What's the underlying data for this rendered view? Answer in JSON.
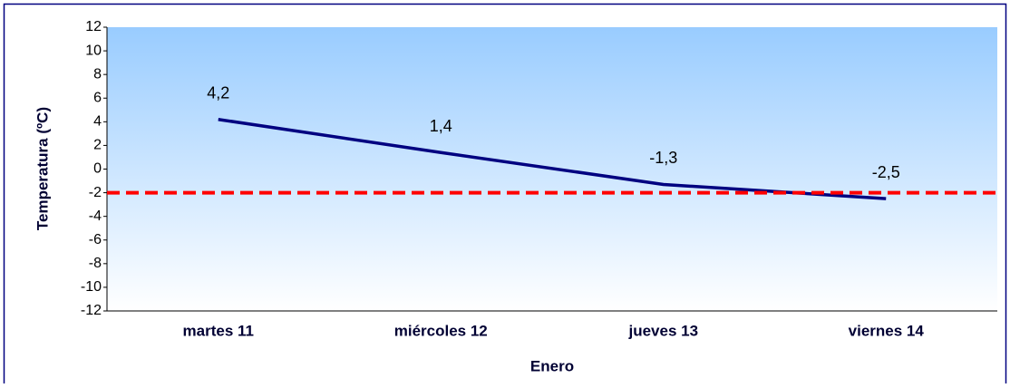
{
  "chart_data": {
    "type": "line",
    "categories": [
      "martes 11",
      "miércoles 12",
      "jueves 13",
      "viernes 14"
    ],
    "values": [
      4.2,
      1.4,
      -1.3,
      -2.5
    ],
    "value_labels": [
      "4,2",
      "1,4",
      "-1,3",
      "-2,5"
    ],
    "color": "#000080",
    "x_label": "Enero",
    "y_label": "Temperatura (ºC)",
    "ylim": [
      -12,
      12
    ],
    "yticks": [
      -12,
      -10,
      -8,
      -6,
      -4,
      -2,
      0,
      2,
      4,
      6,
      8,
      10,
      12
    ],
    "grid": false,
    "reference_line": {
      "value": -2,
      "color": "#ff0000"
    }
  }
}
